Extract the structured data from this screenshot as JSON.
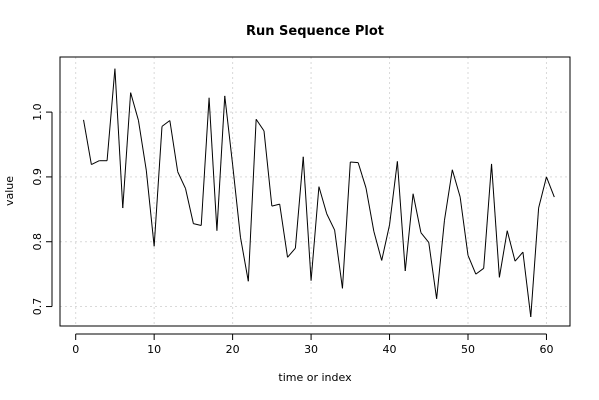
{
  "chart_data": {
    "type": "line",
    "title": "Run Sequence Plot",
    "xlabel": "time or index",
    "ylabel": "value",
    "xlim": [
      -2,
      63
    ],
    "ylim": [
      0.67,
      1.085
    ],
    "xticks": [
      0,
      10,
      20,
      30,
      40,
      50,
      60
    ],
    "yticks": [
      0.7,
      0.8,
      0.9,
      1.0
    ],
    "xtick_labels": [
      "0",
      "10",
      "20",
      "30",
      "40",
      "50",
      "60"
    ],
    "ytick_labels": [
      "0.7",
      "0.8",
      "0.9",
      "1.0"
    ],
    "grid": true,
    "series": [
      {
        "x": [
          1,
          2,
          3,
          4,
          5,
          6,
          7,
          8,
          9,
          10,
          11,
          12,
          13,
          14,
          15,
          16,
          17,
          18,
          19,
          20,
          21,
          22,
          23,
          24,
          25,
          26,
          27,
          28,
          29,
          30,
          31,
          32,
          33,
          34,
          35,
          36,
          37,
          38,
          39,
          40,
          41,
          42,
          43,
          44,
          45,
          46,
          47,
          48,
          49,
          50,
          51,
          52,
          53,
          54,
          55,
          56,
          57,
          58,
          59,
          60,
          61
        ],
        "values": [
          0.988,
          0.919,
          0.925,
          0.925,
          1.067,
          0.852,
          1.03,
          0.987,
          0.91,
          0.793,
          0.978,
          0.987,
          0.908,
          0.882,
          0.828,
          0.825,
          1.022,
          0.817,
          1.025,
          0.919,
          0.807,
          0.739,
          0.989,
          0.971,
          0.855,
          0.858,
          0.776,
          0.79,
          0.931,
          0.74,
          0.885,
          0.843,
          0.818,
          0.728,
          0.923,
          0.922,
          0.883,
          0.816,
          0.771,
          0.826,
          0.924,
          0.755,
          0.874,
          0.814,
          0.799,
          0.712,
          0.833,
          0.911,
          0.869,
          0.779,
          0.75,
          0.759,
          0.92,
          0.745,
          0.817,
          0.77,
          0.784,
          0.684,
          0.852,
          0.9,
          0.869
        ]
      }
    ]
  }
}
